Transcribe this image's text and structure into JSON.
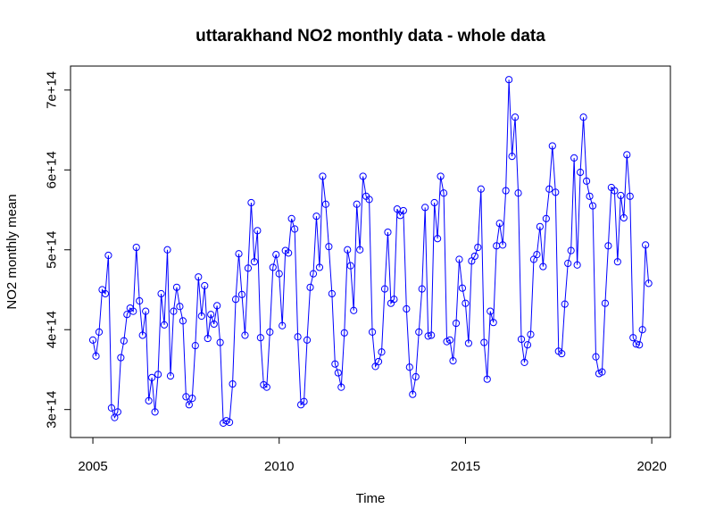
{
  "chart_data": {
    "type": "line",
    "title": "uttarakhand NO2 monthly data - whole data",
    "xlabel": "Time",
    "ylabel": "NO2 monthly mean",
    "x_ticks": [
      {
        "value": 2005,
        "label": "2005"
      },
      {
        "value": 2010,
        "label": "2010"
      },
      {
        "value": 2015,
        "label": "2015"
      },
      {
        "value": 2020,
        "label": "2020"
      }
    ],
    "y_ticks": [
      {
        "value": 300000000000000.0,
        "label": "3e+14"
      },
      {
        "value": 400000000000000.0,
        "label": "4e+14"
      },
      {
        "value": 500000000000000.0,
        "label": "5e+14"
      },
      {
        "value": 600000000000000.0,
        "label": "6e+14"
      },
      {
        "value": 700000000000000.0,
        "label": "7e+14"
      }
    ],
    "xlim": [
      2004.4,
      2020.5
    ],
    "ylim": [
      265000000000000.0,
      730000000000000.0
    ],
    "series_color": "#0000ff",
    "x_start": 2005.0,
    "x_step": 0.08333,
    "values": [
      387000000000000.0,
      367000000000000.0,
      397000000000000.0,
      450000000000000.0,
      445000000000000.0,
      493000000000000.0,
      302000000000000.0,
      290000000000000.0,
      297000000000000.0,
      365000000000000.0,
      386000000000000.0,
      419000000000000.0,
      427000000000000.0,
      423000000000000.0,
      503000000000000.0,
      436000000000000.0,
      393000000000000.0,
      423000000000000.0,
      311000000000000.0,
      340000000000000.0,
      297000000000000.0,
      344000000000000.0,
      445000000000000.0,
      406000000000000.0,
      500000000000000.0,
      342000000000000.0,
      423000000000000.0,
      453000000000000.0,
      429000000000000.0,
      411000000000000.0,
      316000000000000.0,
      306000000000000.0,
      314000000000000.0,
      380000000000000.0,
      466000000000000.0,
      417000000000000.0,
      455000000000000.0,
      389000000000000.0,
      419000000000000.0,
      407000000000000.0,
      430000000000000.0,
      384000000000000.0,
      283000000000000.0,
      286000000000000.0,
      284000000000000.0,
      332000000000000.0,
      438000000000000.0,
      495000000000000.0,
      444000000000000.0,
      393000000000000.0,
      477000000000000.0,
      559000000000000.0,
      485000000000000.0,
      524000000000000.0,
      390000000000000.0,
      331000000000000.0,
      328000000000000.0,
      397000000000000.0,
      478000000000000.0,
      494000000000000.0,
      470000000000000.0,
      405000000000000.0,
      499000000000000.0,
      496000000000000.0,
      539000000000000.0,
      526000000000000.0,
      391000000000000.0,
      306000000000000.0,
      310000000000000.0,
      387000000000000.0,
      453000000000000.0,
      470000000000000.0,
      542000000000000.0,
      478000000000000.0,
      592000000000000.0,
      557000000000000.0,
      504000000000000.0,
      445000000000000.0,
      357000000000000.0,
      346000000000000.0,
      328000000000000.0,
      396000000000000.0,
      500000000000000.0,
      480000000000000.0,
      424000000000000.0,
      557000000000000.0,
      500000000000000.0,
      592000000000000.0,
      567000000000000.0,
      563000000000000.0,
      397000000000000.0,
      354000000000000.0,
      360000000000000.0,
      372000000000000.0,
      451000000000000.0,
      522000000000000.0,
      433000000000000.0,
      438000000000000.0,
      551000000000000.0,
      543000000000000.0,
      549000000000000.0,
      426000000000000.0,
      353000000000000.0,
      319000000000000.0,
      341000000000000.0,
      397000000000000.0,
      451000000000000.0,
      553000000000000.0,
      392000000000000.0,
      393000000000000.0,
      559000000000000.0,
      514000000000000.0,
      592000000000000.0,
      571000000000000.0,
      385000000000000.0,
      387000000000000.0,
      361000000000000.0,
      408000000000000.0,
      488000000000000.0,
      452000000000000.0,
      433000000000000.0,
      383000000000000.0,
      486000000000000.0,
      492000000000000.0,
      503000000000000.0,
      576000000000000.0,
      384000000000000.0,
      338000000000000.0,
      423000000000000.0,
      409000000000000.0,
      505000000000000.0,
      533000000000000.0,
      506000000000000.0,
      574000000000000.0,
      713000000000000.0,
      617000000000000.0,
      666000000000000.0,
      571000000000000.0,
      388000000000000.0,
      359000000000000.0,
      381000000000000.0,
      394000000000000.0,
      488000000000000.0,
      494000000000000.0,
      529000000000000.0,
      479000000000000.0,
      539000000000000.0,
      576000000000000.0,
      630000000000000.0,
      572000000000000.0,
      373000000000000.0,
      370000000000000.0,
      432000000000000.0,
      483000000000000.0,
      499000000000000.0,
      615000000000000.0,
      481000000000000.0,
      597000000000000.0,
      666000000000000.0,
      586000000000000.0,
      567000000000000.0,
      555000000000000.0,
      366000000000000.0,
      345000000000000.0,
      347000000000000.0,
      433000000000000.0,
      505000000000000.0,
      578000000000000.0,
      574000000000000.0,
      485000000000000.0,
      568000000000000.0,
      540000000000000.0,
      619000000000000.0,
      567000000000000.0,
      390000000000000.0,
      382000000000000.0,
      381000000000000.0,
      400000000000000.0,
      506000000000000.0,
      458000000000000.0
    ]
  }
}
